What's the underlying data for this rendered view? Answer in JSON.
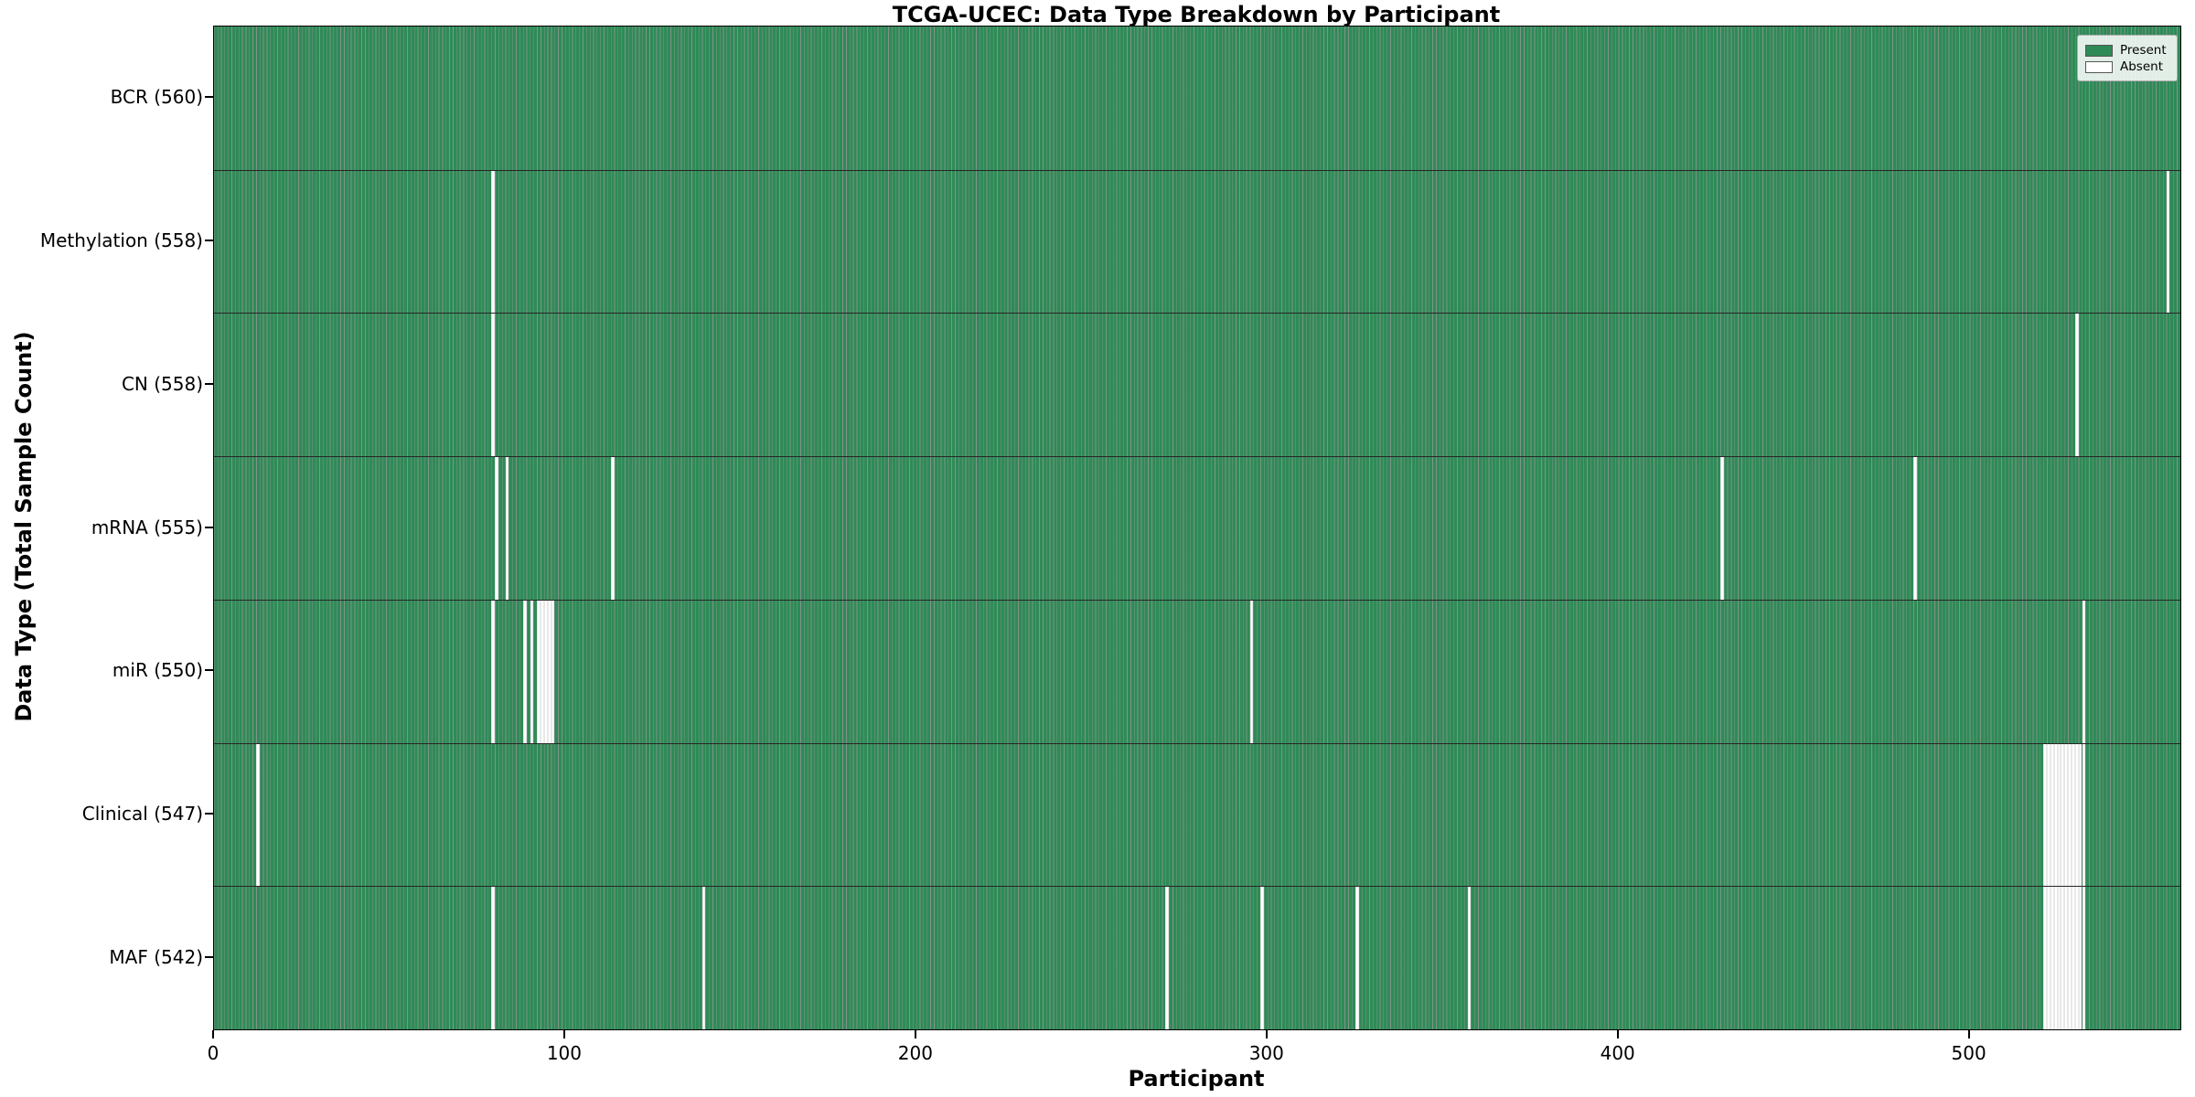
{
  "title": "TCGA-UCEC: Data Type Breakdown by Participant",
  "x_axis": {
    "label": "Participant",
    "ticks": [
      0,
      100,
      200,
      300,
      400,
      500
    ],
    "range": [
      0,
      560
    ]
  },
  "y_axis": {
    "label": "Data Type (Total Sample Count)"
  },
  "legend": {
    "present_label": "Present",
    "absent_label": "Absent"
  },
  "colors": {
    "present": "#2e8b57",
    "absent": "#ffffff",
    "bar_edge": "rgba(8,40,22,0.5)",
    "spine": "#000000"
  },
  "chart_data": {
    "type": "heatmap",
    "title": "TCGA-UCEC: Data Type Breakdown by Participant",
    "xlabel": "Participant",
    "ylabel": "Data Type (Total Sample Count)",
    "x_range": [
      0,
      560
    ],
    "n_participants": 560,
    "cell_values": "present=1 (green), absent=0 (white)",
    "legend_entries": [
      "Present",
      "Absent"
    ],
    "legend_position": "upper right",
    "rows": [
      {
        "label": "BCR (560)",
        "data_type": "BCR",
        "present_count": 560,
        "absent_participants": []
      },
      {
        "label": "Methylation (558)",
        "data_type": "Methylation",
        "present_count": 558,
        "absent_participants": [
          79,
          556
        ]
      },
      {
        "label": "CN (558)",
        "data_type": "CN",
        "present_count": 558,
        "absent_participants": [
          79,
          530
        ]
      },
      {
        "label": "mRNA (555)",
        "data_type": "mRNA",
        "present_count": 555,
        "absent_participants": [
          80,
          83,
          113,
          429,
          484
        ]
      },
      {
        "label": "miR (550)",
        "data_type": "miR",
        "present_count": 550,
        "absent_participants": [
          79,
          88,
          90,
          92,
          93,
          94,
          95,
          96,
          295,
          532
        ]
      },
      {
        "label": "Clinical (547)",
        "data_type": "Clinical",
        "present_count": 547,
        "absent_participants": [
          12,
          521,
          522,
          523,
          524,
          525,
          526,
          527,
          528,
          529,
          530,
          531,
          532
        ]
      },
      {
        "label": "MAF (542)",
        "data_type": "MAF",
        "present_count": 542,
        "absent_participants": [
          79,
          139,
          271,
          298,
          325,
          357,
          521,
          522,
          523,
          524,
          525,
          526,
          527,
          528,
          529,
          530,
          531,
          532
        ]
      }
    ]
  }
}
